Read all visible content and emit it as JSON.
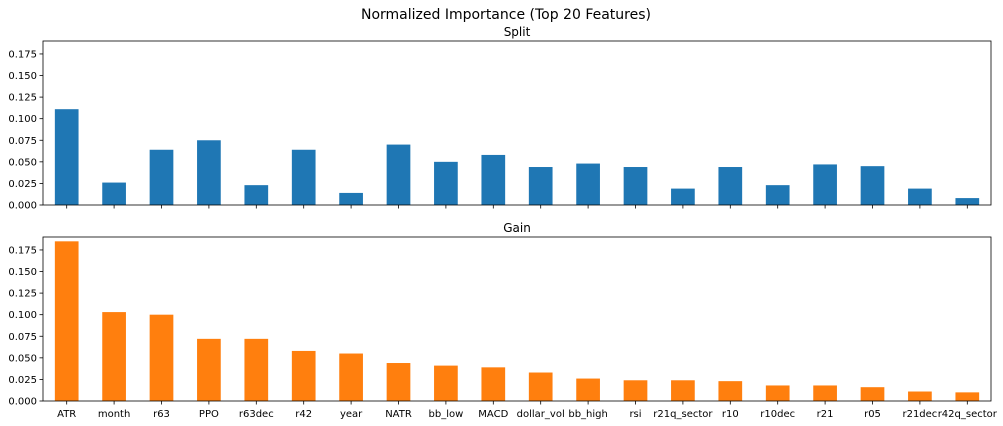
{
  "figure_title": "Normalized Importance (Top 20 Features)",
  "chart_data": [
    {
      "type": "bar",
      "title": "Split",
      "color": "#1f77b4",
      "ylim": [
        0,
        0.19
      ],
      "yticks": [
        0.0,
        0.025,
        0.05,
        0.075,
        0.1,
        0.125,
        0.15,
        0.175
      ],
      "ytick_labels": [
        "0.000",
        "0.025",
        "0.050",
        "0.075",
        "0.100",
        "0.125",
        "0.150",
        "0.175"
      ],
      "categories": [
        "ATR",
        "month",
        "r63",
        "PPO",
        "r63dec",
        "r42",
        "year",
        "NATR",
        "bb_low",
        "MACD",
        "dollar_vol",
        "bb_high",
        "rsi",
        "r21q_sector",
        "r10",
        "r10dec",
        "r21",
        "r05",
        "r21dec",
        "r42q_sector"
      ],
      "values": [
        0.111,
        0.026,
        0.064,
        0.075,
        0.023,
        0.064,
        0.014,
        0.07,
        0.05,
        0.058,
        0.044,
        0.048,
        0.044,
        0.019,
        0.044,
        0.023,
        0.047,
        0.045,
        0.019,
        0.008
      ],
      "show_xticklabels": false
    },
    {
      "type": "bar",
      "title": "Gain",
      "color": "#ff7f0e",
      "ylim": [
        0,
        0.19
      ],
      "yticks": [
        0.0,
        0.025,
        0.05,
        0.075,
        0.1,
        0.125,
        0.15,
        0.175
      ],
      "ytick_labels": [
        "0.000",
        "0.025",
        "0.050",
        "0.075",
        "0.100",
        "0.125",
        "0.150",
        "0.175"
      ],
      "categories": [
        "ATR",
        "month",
        "r63",
        "PPO",
        "r63dec",
        "r42",
        "year",
        "NATR",
        "bb_low",
        "MACD",
        "dollar_vol",
        "bb_high",
        "rsi",
        "r21q_sector",
        "r10",
        "r10dec",
        "r21",
        "r05",
        "r21dec",
        "r42q_sector"
      ],
      "values": [
        0.185,
        0.103,
        0.1,
        0.072,
        0.072,
        0.058,
        0.055,
        0.044,
        0.041,
        0.039,
        0.033,
        0.026,
        0.024,
        0.024,
        0.023,
        0.018,
        0.018,
        0.016,
        0.011,
        0.01
      ],
      "show_xticklabels": true
    }
  ]
}
